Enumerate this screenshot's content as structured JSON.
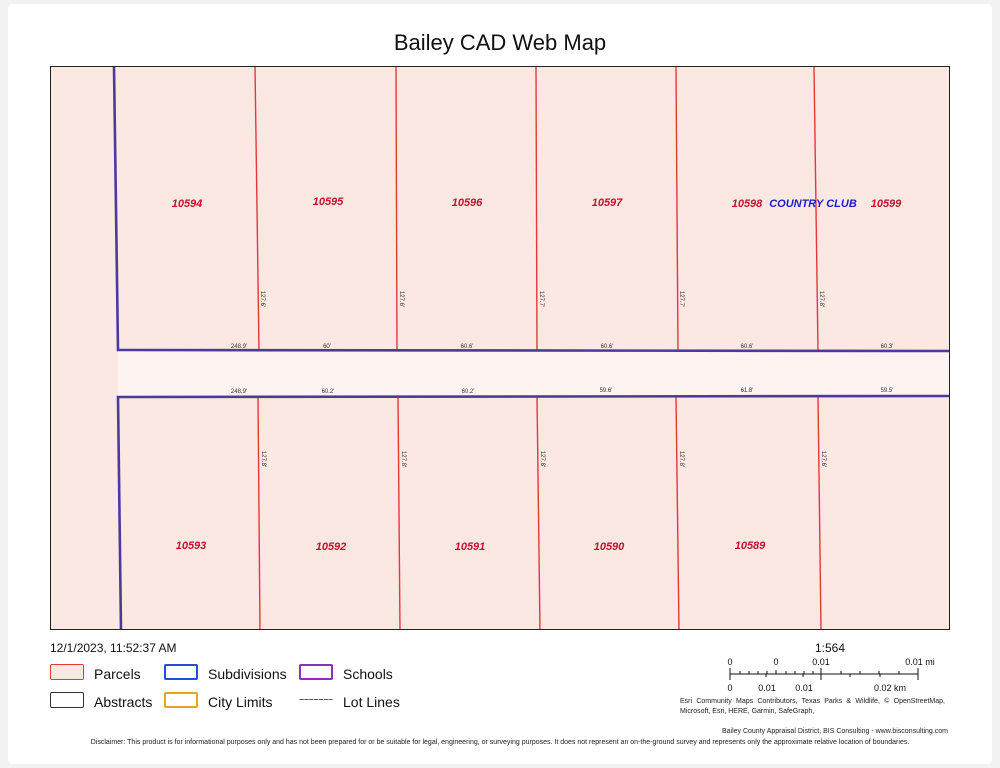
{
  "title": "Bailey CAD Web Map",
  "timestamp": "12/1/2023, 11:52:37 AM",
  "scale": "1:564",
  "colors": {
    "parcel_fill": "#fce8e2",
    "parcel_line": "#e03a3a",
    "subdivision": "#1e50d2",
    "school": "#8a2fbf",
    "abstract": "#333333",
    "city_limits": "#e8a320",
    "boundary": "#4b3a9b"
  },
  "parcels": {
    "north": [
      "10594",
      "10595",
      "10596",
      "10597",
      "10598",
      "10599"
    ],
    "south": [
      "10593",
      "10592",
      "10591",
      "10590",
      "10589"
    ]
  },
  "subdivision_label": "COUNTRY CLUB",
  "dimensions": {
    "north_sides": [
      "127.6'",
      "127.6'",
      "127.7'",
      "127.7'",
      "127.8'"
    ],
    "north_fronts": [
      "248.9'",
      "60'",
      "60.6'",
      "60.6'",
      "60.6'",
      "60.3'"
    ],
    "south_fronts": [
      "248.9'",
      "60.2'",
      "60.2'",
      "59.6'",
      "61.8'",
      "59.5'"
    ],
    "south_sides": [
      "127.8'",
      "127.8'",
      "127.8'",
      "127.8'",
      "127.6'"
    ]
  },
  "legend": [
    {
      "label": "Parcels",
      "icon": "parcels-swatch-icon"
    },
    {
      "label": "Subdivisions",
      "icon": "subdivisions-swatch-icon"
    },
    {
      "label": "Schools",
      "icon": "schools-swatch-icon"
    },
    {
      "label": "Abstracts",
      "icon": "abstracts-swatch-icon"
    },
    {
      "label": "City Limits",
      "icon": "city-limits-swatch-icon"
    },
    {
      "label": "Lot Lines",
      "icon": "lot-lines-swatch-icon"
    }
  ],
  "scalebar": {
    "mi_labels": [
      "0",
      "0",
      "0.01",
      "0.01 mi"
    ],
    "km_labels": [
      "0",
      "0.01",
      "0.01",
      "0.02 km"
    ]
  },
  "attribution": "Esri Community Maps Contributors, Texas Parks & Wildlife, © OpenStreetMap, Microsoft, Esri, HERE, Garmin, SafeGraph,",
  "credits": "Bailey County Appraisal District, BIS Consulting - www.bisconsulting.com",
  "disclaimer": "Disclaimer: This product is for informational purposes only and has not been prepared for or be suitable for legal, engineering, or surveying purposes. It does not represent an on-the-ground survey and represents only the approximate relative location of boundaries."
}
